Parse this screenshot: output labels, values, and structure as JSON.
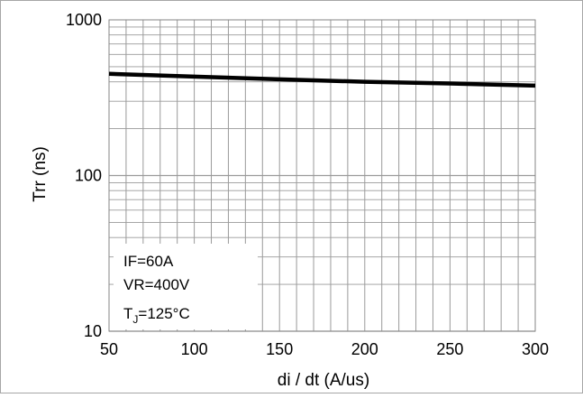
{
  "chart_data": {
    "type": "line",
    "title": "",
    "xlabel": "di / dt (A/us)",
    "ylabel": "Trr (ns)",
    "x_scale": "linear",
    "y_scale": "log",
    "xlim": [
      50,
      300
    ],
    "ylim": [
      10,
      1000
    ],
    "x_ticks": [
      50,
      100,
      150,
      200,
      250,
      300
    ],
    "y_ticks": [
      10,
      100,
      1000
    ],
    "grid": true,
    "legend": "none",
    "series": [
      {
        "x": [
          50,
          100,
          150,
          200,
          250,
          300
        ],
        "y": [
          450,
          432,
          415,
          400,
          390,
          378
        ],
        "color": "#000000"
      }
    ],
    "annotation": {
      "line1": "IF=60A",
      "line2": "VR=400V",
      "line3_prefix": "T",
      "line3_sub": "J",
      "line3_suffix": "=125°C"
    }
  }
}
